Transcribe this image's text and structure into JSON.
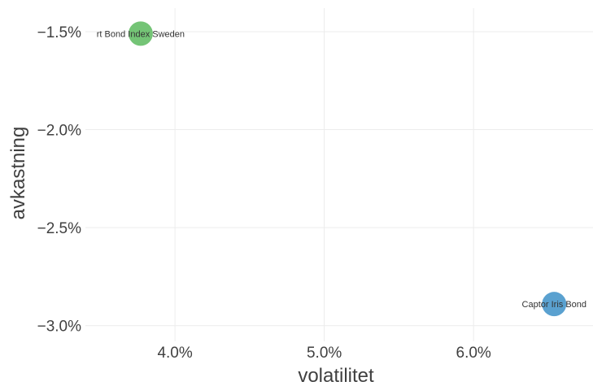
{
  "chart_data": {
    "type": "scatter",
    "title": "",
    "xlabel": "volatilitet",
    "ylabel": "avkastning",
    "xlim": [
      3.4,
      6.8
    ],
    "ylim": [
      -3.08,
      -1.38
    ],
    "x_ticks": [
      4.0,
      5.0,
      6.0
    ],
    "x_tick_labels": [
      "4.0%",
      "5.0%",
      "6.0%"
    ],
    "y_ticks": [
      -1.5,
      -2.0,
      -2.5,
      -3.0
    ],
    "y_tick_labels": [
      "−1.5%",
      "−2.0%",
      "−2.5%",
      "−3.0%"
    ],
    "grid": true,
    "points": [
      {
        "label": "rt Bond Index Sweden",
        "x": 3.77,
        "y": -1.51,
        "color": "#74c476"
      },
      {
        "label": "Captor Iris Bond",
        "x": 6.54,
        "y": -2.89,
        "color": "#5aa1d0"
      }
    ]
  }
}
